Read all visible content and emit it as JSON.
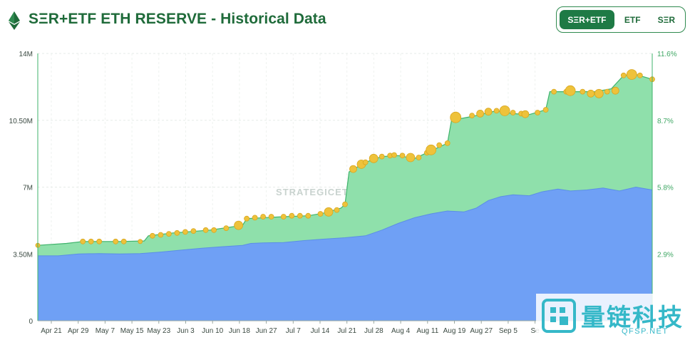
{
  "header": {
    "title": "SΞR+ETF ETH RESERVE - Historical Data",
    "toggle": [
      {
        "label": "SΞR+ETF",
        "active": true
      },
      {
        "label": "ETF",
        "active": false
      },
      {
        "label": "SΞR",
        "active": false
      }
    ]
  },
  "watermark_text": "STRATEGICETHRESERVE.XYZ",
  "overlay_logo": {
    "cn": "量链科技",
    "url": "QFSP.NET"
  },
  "colors": {
    "brand": "#1f6b3a",
    "etf_fill": "#8fe0ab",
    "etf_line": "#3fb36b",
    "ser_fill": "#6fa0f5",
    "bubble": "#eec23b",
    "bubble_stroke": "#d9a61f"
  },
  "chart_data": {
    "type": "area",
    "title": "SΞR+ETF ETH RESERVE - Historical Data",
    "y_left": {
      "min": 0,
      "max": 14000000,
      "ticks": [
        "0",
        "3.50M",
        "7M",
        "10.50M",
        "14M"
      ]
    },
    "y_right": {
      "ticks": [
        "2.9%",
        "5.8%",
        "8.7%",
        "11.6%"
      ]
    },
    "x_ticks": [
      "Apr 21",
      "Apr 29",
      "May 7",
      "May 15",
      "May 23",
      "Jun 3",
      "Jun 10",
      "Jun 18",
      "Jun 27",
      "Jul 7",
      "Jul 14",
      "Jul 21",
      "Jul 28",
      "Aug 4",
      "Aug 11",
      "Aug 19",
      "Aug 27",
      "Sep 5",
      "Se"
    ],
    "day_range": [
      0,
      150
    ],
    "series": [
      {
        "name": "SΞR",
        "points": [
          [
            0,
            3.4
          ],
          [
            5,
            3.4
          ],
          [
            10,
            3.5
          ],
          [
            15,
            3.52
          ],
          [
            20,
            3.5
          ],
          [
            25,
            3.52
          ],
          [
            30,
            3.6
          ],
          [
            35,
            3.7
          ],
          [
            40,
            3.8
          ],
          [
            45,
            3.88
          ],
          [
            50,
            3.95
          ],
          [
            52,
            4.05
          ],
          [
            55,
            4.08
          ],
          [
            60,
            4.1
          ],
          [
            65,
            4.2
          ],
          [
            70,
            4.28
          ],
          [
            75,
            4.35
          ],
          [
            80,
            4.45
          ],
          [
            84,
            4.75
          ],
          [
            88,
            5.1
          ],
          [
            92,
            5.4
          ],
          [
            96,
            5.6
          ],
          [
            100,
            5.75
          ],
          [
            104,
            5.7
          ],
          [
            107,
            5.9
          ],
          [
            110,
            6.3
          ],
          [
            113,
            6.5
          ],
          [
            116,
            6.6
          ],
          [
            120,
            6.55
          ],
          [
            123,
            6.75
          ],
          [
            127,
            6.9
          ],
          [
            130,
            6.8
          ],
          [
            134,
            6.85
          ],
          [
            138,
            6.95
          ],
          [
            142,
            6.8
          ],
          [
            146,
            7.0
          ],
          [
            150,
            6.85
          ]
        ]
      },
      {
        "name": "SΞR+ETF",
        "points": [
          [
            0,
            3.95
          ],
          [
            7,
            4.05
          ],
          [
            11,
            4.15
          ],
          [
            20,
            4.15
          ],
          [
            26,
            4.18
          ],
          [
            27,
            4.45
          ],
          [
            33,
            4.6
          ],
          [
            42,
            4.75
          ],
          [
            50,
            5.0
          ],
          [
            51,
            5.35
          ],
          [
            60,
            5.45
          ],
          [
            66,
            5.5
          ],
          [
            70,
            5.65
          ],
          [
            74,
            5.9
          ],
          [
            75,
            6.1
          ],
          [
            76,
            7.8
          ],
          [
            80,
            8.3
          ],
          [
            84,
            8.6
          ],
          [
            88,
            8.65
          ],
          [
            92,
            8.5
          ],
          [
            96,
            8.9
          ],
          [
            100,
            9.3
          ],
          [
            101,
            10.5
          ],
          [
            106,
            10.7
          ],
          [
            112,
            11.0
          ],
          [
            116,
            10.85
          ],
          [
            120,
            10.8
          ],
          [
            124,
            11.05
          ],
          [
            125,
            12.0
          ],
          [
            130,
            12.0
          ],
          [
            136,
            12.0
          ],
          [
            140,
            12.15
          ],
          [
            143,
            12.85
          ],
          [
            146,
            12.9
          ],
          [
            150,
            12.65
          ]
        ]
      }
    ],
    "bubbles": [
      [
        0,
        3.95,
        3
      ],
      [
        11,
        4.15,
        3.5
      ],
      [
        13,
        4.15,
        3.5
      ],
      [
        15,
        4.15,
        3.5
      ],
      [
        19,
        4.15,
        3.5
      ],
      [
        21,
        4.15,
        3.5
      ],
      [
        25,
        4.15,
        3
      ],
      [
        28,
        4.45,
        3.5
      ],
      [
        30,
        4.5,
        3.5
      ],
      [
        32,
        4.55,
        3.5
      ],
      [
        34,
        4.6,
        3.5
      ],
      [
        36,
        4.65,
        3.5
      ],
      [
        38,
        4.7,
        3.5
      ],
      [
        41,
        4.75,
        3.5
      ],
      [
        43,
        4.75,
        3.5
      ],
      [
        46,
        4.85,
        3.5
      ],
      [
        49,
        5.0,
        6
      ],
      [
        51,
        5.35,
        3.5
      ],
      [
        53,
        5.4,
        3.5
      ],
      [
        55,
        5.45,
        3.5
      ],
      [
        57,
        5.45,
        3.5
      ],
      [
        60,
        5.45,
        3.5
      ],
      [
        62,
        5.5,
        3.5
      ],
      [
        64,
        5.5,
        3.5
      ],
      [
        66,
        5.5,
        3.5
      ],
      [
        69,
        5.6,
        3.5
      ],
      [
        71,
        5.7,
        6
      ],
      [
        73,
        5.8,
        3.5
      ],
      [
        75,
        6.1,
        3.5
      ],
      [
        77,
        7.95,
        5
      ],
      [
        79,
        8.2,
        6
      ],
      [
        80,
        8.3,
        3.5
      ],
      [
        82,
        8.5,
        6
      ],
      [
        84,
        8.6,
        3.5
      ],
      [
        86,
        8.65,
        3.5
      ],
      [
        87,
        8.68,
        3.5
      ],
      [
        89,
        8.65,
        3.5
      ],
      [
        91,
        8.55,
        6
      ],
      [
        93,
        8.55,
        3.5
      ],
      [
        95,
        8.8,
        3.5
      ],
      [
        96,
        8.95,
        7
      ],
      [
        98,
        9.2,
        3.5
      ],
      [
        100,
        9.3,
        3.5
      ],
      [
        102,
        10.65,
        7.5
      ],
      [
        106,
        10.75,
        3.5
      ],
      [
        108,
        10.85,
        5
      ],
      [
        110,
        10.95,
        5
      ],
      [
        112,
        11.0,
        3.5
      ],
      [
        114,
        11.0,
        7
      ],
      [
        116,
        10.9,
        3.5
      ],
      [
        118,
        10.85,
        3.5
      ],
      [
        119,
        10.82,
        5
      ],
      [
        122,
        10.9,
        3.5
      ],
      [
        124,
        11.05,
        3.5
      ],
      [
        126,
        12.0,
        3.5
      ],
      [
        129,
        12.0,
        3.5
      ],
      [
        130,
        12.05,
        7
      ],
      [
        133,
        12.0,
        3.5
      ],
      [
        135,
        11.9,
        5
      ],
      [
        137,
        11.9,
        6
      ],
      [
        139,
        12.0,
        3.5
      ],
      [
        141,
        12.05,
        5
      ],
      [
        143,
        12.85,
        3.5
      ],
      [
        145,
        12.9,
        7
      ],
      [
        147,
        12.85,
        3.5
      ],
      [
        150,
        12.65,
        3.5
      ]
    ]
  }
}
